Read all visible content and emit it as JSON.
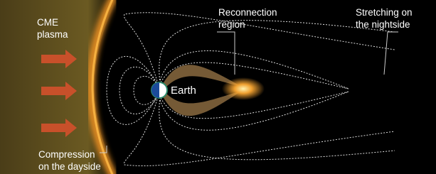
{
  "labels": [
    {
      "lines": [
        "CME",
        "plasma"
      ]
    },
    {
      "lines": [
        "Reconnection",
        "region"
      ]
    },
    {
      "lines": [
        "Stretching on",
        "the nightside"
      ]
    },
    {
      "lines": [
        "Earth"
      ]
    },
    {
      "lines": [
        "Compression",
        "on the dayside"
      ]
    }
  ]
}
